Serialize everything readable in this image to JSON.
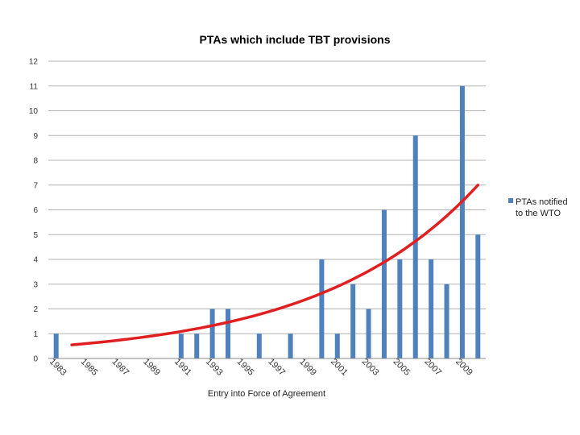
{
  "chart_data": {
    "type": "bar",
    "title": "PTAs which include TBT provisions",
    "xlabel": "Entry into Force of Agreement",
    "ylabel": "",
    "ylim": [
      0,
      12
    ],
    "yticks": [
      0,
      1,
      2,
      3,
      4,
      5,
      6,
      7,
      8,
      9,
      10,
      11,
      12
    ],
    "grid": true,
    "legend_position": "right",
    "x": [
      1983,
      1984,
      1985,
      1986,
      1987,
      1988,
      1989,
      1990,
      1991,
      1992,
      1993,
      1994,
      1995,
      1996,
      1997,
      1998,
      1999,
      2000,
      2001,
      2002,
      2003,
      2004,
      2005,
      2006,
      2007,
      2008,
      2009,
      2010
    ],
    "x_tick_labels": [
      "1983",
      "1985",
      "1987",
      "1989",
      "1991",
      "1993",
      "1995",
      "1997",
      "1999",
      "2001",
      "2003",
      "2005",
      "2007",
      "2009"
    ],
    "series": [
      {
        "name": "PTAs notified to the WTO",
        "color": "#4f81bd",
        "values": [
          1,
          0,
          0,
          0,
          0,
          0,
          0,
          0,
          1,
          1,
          2,
          2,
          0,
          1,
          0,
          1,
          0,
          4,
          1,
          3,
          2,
          6,
          4,
          9,
          4,
          3,
          11,
          5
        ]
      }
    ],
    "trendline": {
      "type": "exponential",
      "color": "#e02020",
      "from_year": 1984,
      "to_year": 2010,
      "start_value": 0.55,
      "end_value": 7.0
    }
  }
}
